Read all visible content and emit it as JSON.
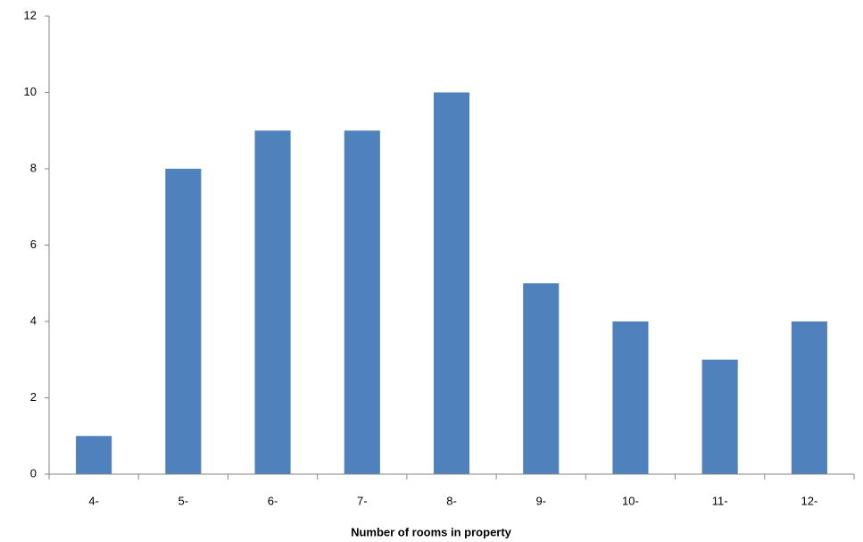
{
  "chart_data": {
    "type": "bar",
    "x_label": "Number of rooms in property",
    "categories": [
      "4-",
      "5-",
      "6-",
      "7-",
      "8-",
      "9-",
      "10-",
      "11-",
      "12-"
    ],
    "values": [
      1,
      8,
      9,
      9,
      10,
      5,
      4,
      3,
      4
    ],
    "color": "#4f81bd",
    "ylim": [
      0,
      12
    ],
    "yticks": [
      0,
      2,
      4,
      6,
      8,
      10,
      12
    ],
    "grid": false
  }
}
